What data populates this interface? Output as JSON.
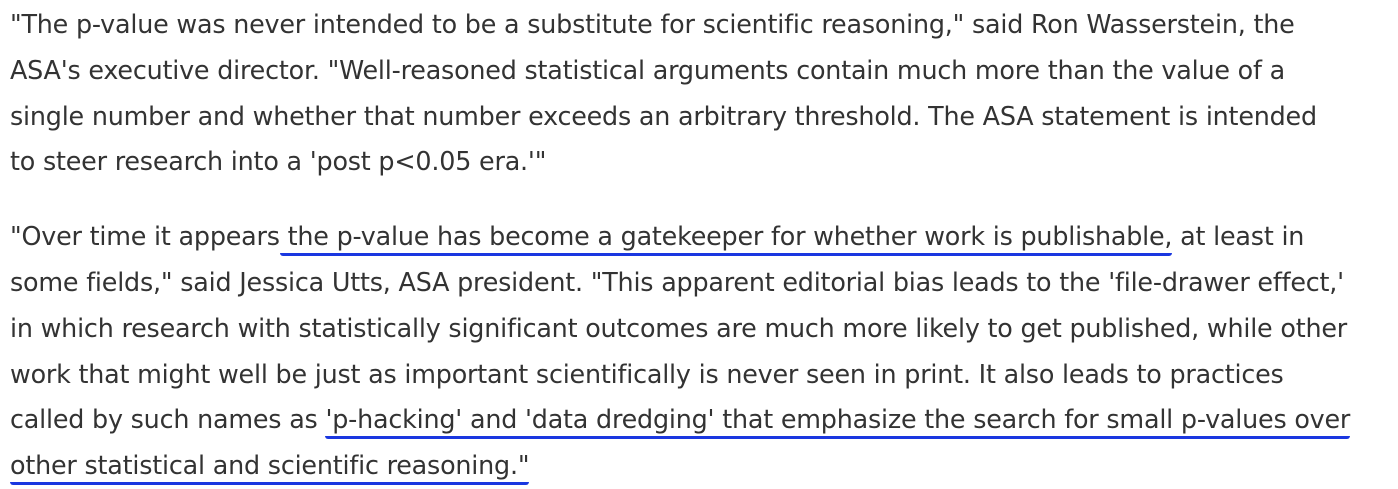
{
  "paragraphs": [
    {
      "lines": [
        "\"The p-value was never intended to be a substitute for scientific reasoning,\" said Ron Wasserstein, the",
        "ASA's executive director. \"Well-reasoned statistical arguments contain much more than the value of a",
        "single number and whether that number exceeds an arbitrary threshold. The ASA statement is intended",
        "to steer research into a 'post p<0.05 era.'\""
      ]
    },
    {
      "line1_before": "\"Over time it appears",
      "line1_highlight": " the p-value has become a gatekeeper for whether work is publishable,",
      "line1_after": " at least in",
      "line2": "some fields,\" said Jessica Utts, ASA president. \"This apparent editorial bias leads to the 'file-drawer effect,'",
      "line3": "in which research with statistically significant outcomes are much more likely to get published, while other",
      "line4": "work that might well be just as important scientifically is never seen in print. It also leads to practices",
      "line5_before": "called by such names as ",
      "line5_highlight": "'p-hacking' and 'data dredging' that emphasize the search for small p-values over",
      "line6_highlight": "other statistical and scientific reasoning.\""
    }
  ],
  "colors": {
    "text": "#333333",
    "highlight_underline": "#1a37e0",
    "background": "#ffffff"
  }
}
